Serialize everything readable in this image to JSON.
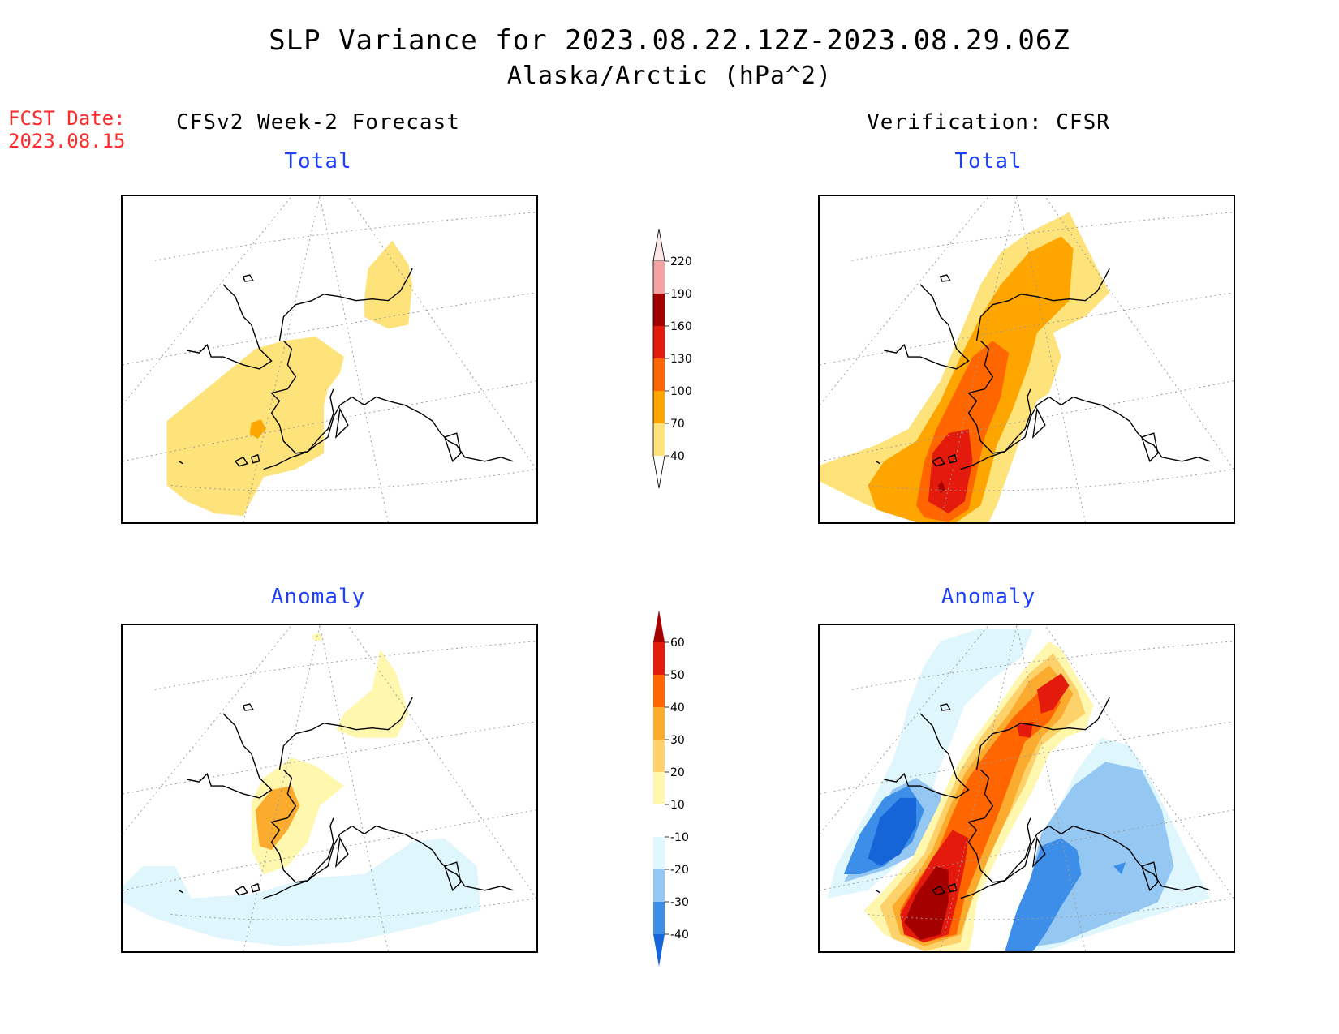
{
  "header": {
    "title_line1": "SLP Variance for 2023.08.22.12Z-2023.08.29.06Z",
    "title_line2": "Alaska/Arctic (hPa^2)"
  },
  "fcst_date": {
    "label": "FCST Date:",
    "value": "2023.08.15"
  },
  "columns": {
    "left_heading": "CFSv2 Week-2 Forecast",
    "right_heading": "Verification: CFSR"
  },
  "panels": [
    {
      "id": "forecast-total",
      "title": "Total"
    },
    {
      "id": "verification-total",
      "title": "Total"
    },
    {
      "id": "forecast-anomaly",
      "title": "Anomaly"
    },
    {
      "id": "verification-anomaly",
      "title": "Anomaly"
    }
  ],
  "colorbars": {
    "total": {
      "levels": [
        "40",
        "70",
        "100",
        "130",
        "160",
        "190",
        "220"
      ],
      "colors": [
        "#fde37a",
        "#ffa500",
        "#ff6600",
        "#e31a0c",
        "#a50000",
        "#f4a3a3",
        "#fde6e6"
      ]
    },
    "anomaly": {
      "levels": [
        "-40",
        "-30",
        "-20",
        "-10",
        "10",
        "20",
        "30",
        "40",
        "50",
        "60"
      ],
      "colors": [
        "#1565d8",
        "#3d8ee8",
        "#94c8f3",
        "#dff6fd",
        "#ffffff",
        "#fff7ae",
        "#fdd26b",
        "#fbab2d",
        "#ff6600",
        "#e31a0c",
        "#a50000"
      ]
    }
  }
}
